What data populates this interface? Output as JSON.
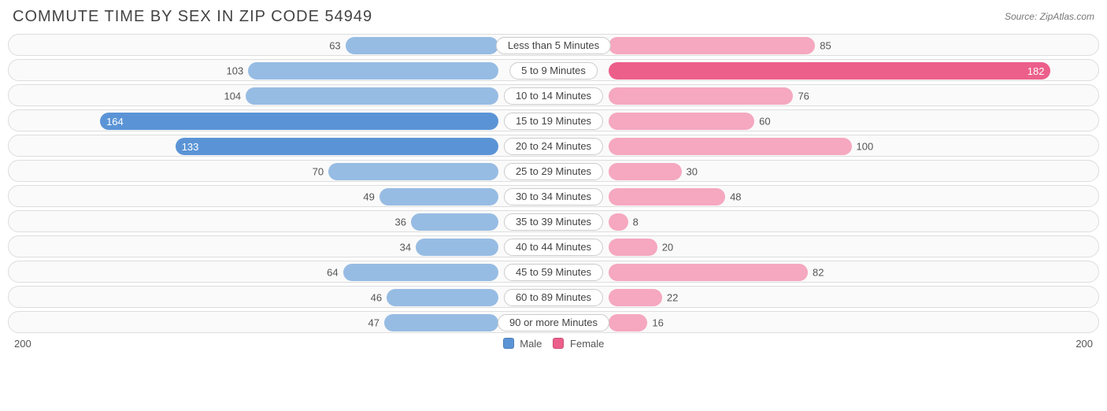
{
  "title": "COMMUTE TIME BY SEX IN ZIP CODE 54949",
  "source": "Source: ZipAtlas.com",
  "chart": {
    "type": "diverging-bar",
    "axis_max": 200,
    "axis_left_label": "200",
    "axis_right_label": "200",
    "inner_label_threshold": 120,
    "track_border_color": "#dddddd",
    "track_bg": "#fafafa",
    "text_color": "#555555",
    "categories": [
      {
        "label": "Less than 5 Minutes",
        "male": 63,
        "female": 85
      },
      {
        "label": "5 to 9 Minutes",
        "male": 103,
        "female": 182
      },
      {
        "label": "10 to 14 Minutes",
        "male": 104,
        "female": 76
      },
      {
        "label": "15 to 19 Minutes",
        "male": 164,
        "female": 60
      },
      {
        "label": "20 to 24 Minutes",
        "male": 133,
        "female": 100
      },
      {
        "label": "25 to 29 Minutes",
        "male": 70,
        "female": 30
      },
      {
        "label": "30 to 34 Minutes",
        "male": 49,
        "female": 48
      },
      {
        "label": "35 to 39 Minutes",
        "male": 36,
        "female": 8
      },
      {
        "label": "40 to 44 Minutes",
        "male": 34,
        "female": 20
      },
      {
        "label": "45 to 59 Minutes",
        "male": 64,
        "female": 82
      },
      {
        "label": "60 to 89 Minutes",
        "male": 46,
        "female": 22
      },
      {
        "label": "90 or more Minutes",
        "male": 47,
        "female": 16
      }
    ],
    "series": {
      "male": {
        "label": "Male",
        "color_light": "#97bce3",
        "color_dark": "#5b94d6"
      },
      "female": {
        "label": "Female",
        "color_light": "#f5a8c0",
        "color_dark": "#ec5f8b"
      }
    }
  }
}
